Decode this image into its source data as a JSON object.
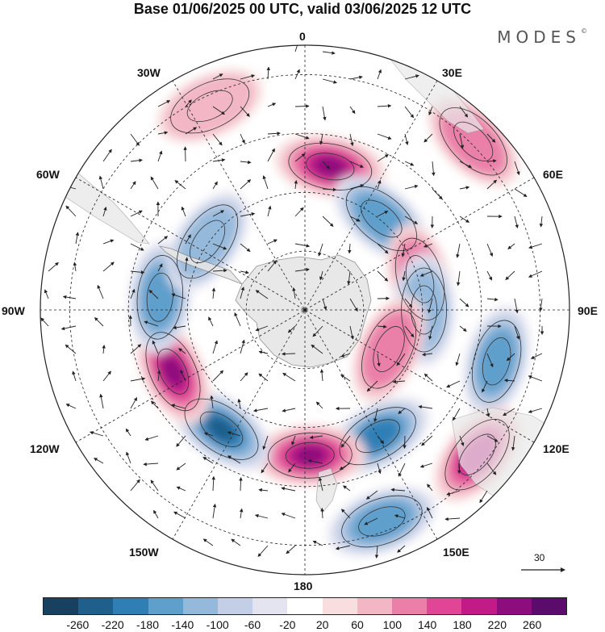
{
  "title": "Base 01/06/2025 00 UTC, valid 03/06/2025 12 UTC",
  "brand": "MODES",
  "brand_mark": "©",
  "longitude_labels": {
    "top": "0",
    "bottom": "180",
    "left": "90W",
    "right": "90E",
    "upper_left_1": "30W",
    "upper_left_2": "60W",
    "upper_right_1": "30E",
    "upper_right_2": "60E",
    "lower_left_1": "120W",
    "lower_left_2": "150W",
    "lower_right_1": "120E",
    "lower_right_2": "150E"
  },
  "reference_vector": {
    "label": "30"
  },
  "colorbar": {
    "colors": [
      "#17415e",
      "#1f5f8c",
      "#2f7fb5",
      "#5f9fcc",
      "#95b9db",
      "#c3cfe6",
      "#e4e4f0",
      "#ffffff",
      "#f8dede",
      "#f2b6c4",
      "#ea7fa8",
      "#e04596",
      "#c21b88",
      "#8e0d7e",
      "#5b0b6b"
    ],
    "tick_labels": [
      "-260",
      "-220",
      "-180",
      "-140",
      "-100",
      "-60",
      "-20",
      "20",
      "60",
      "100",
      "140",
      "180",
      "220",
      "260"
    ]
  },
  "anomaly_blobs": [
    {
      "lon": 10,
      "colat": 0.55,
      "sign": 1,
      "level": 5
    },
    {
      "lon": 40,
      "colat": 0.45,
      "sign": -1,
      "level": 3
    },
    {
      "lon": 45,
      "colat": 0.9,
      "sign": 1,
      "level": 2
    },
    {
      "lon": 75,
      "colat": 0.45,
      "sign": 1,
      "level": 2
    },
    {
      "lon": 90,
      "colat": 0.45,
      "sign": -1,
      "level": 2
    },
    {
      "lon": 105,
      "colat": 0.75,
      "sign": -1,
      "level": 3
    },
    {
      "lon": 115,
      "colat": 0.35,
      "sign": 1,
      "level": 2
    },
    {
      "lon": 130,
      "colat": 0.85,
      "sign": 1,
      "level": 4
    },
    {
      "lon": 150,
      "colat": 0.55,
      "sign": -1,
      "level": 4
    },
    {
      "lon": 160,
      "colat": 0.85,
      "sign": -1,
      "level": 3
    },
    {
      "lon": 178,
      "colat": 0.55,
      "sign": 1,
      "level": 5
    },
    {
      "lon": -145,
      "colat": 0.55,
      "sign": -1,
      "level": 5
    },
    {
      "lon": -115,
      "colat": 0.55,
      "sign": 1,
      "level": 5
    },
    {
      "lon": -85,
      "colat": 0.55,
      "sign": -1,
      "level": 3
    },
    {
      "lon": -55,
      "colat": 0.45,
      "sign": -1,
      "level": 2
    },
    {
      "lon": -25,
      "colat": 0.85,
      "sign": 1,
      "level": 1
    }
  ]
}
